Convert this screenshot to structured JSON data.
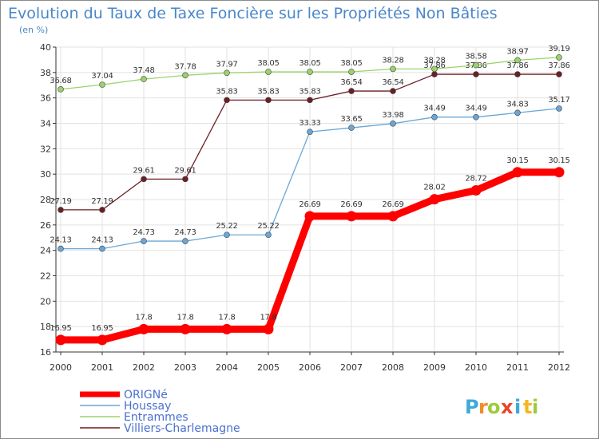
{
  "chart_data": {
    "type": "line",
    "title": "Evolution du Taux de Taxe Foncière sur les Propriétés Non Bâties",
    "subtitle": "(en %)",
    "x": [
      "2000",
      "2001",
      "2002",
      "2003",
      "2004",
      "2005",
      "2006",
      "2007",
      "2008",
      "2009",
      "2010",
      "2011",
      "2012"
    ],
    "ylim": [
      16,
      40
    ],
    "yticks": [
      "16",
      "18",
      "20",
      "22",
      "24",
      "26",
      "28",
      "30",
      "32",
      "34",
      "36",
      "38",
      "40"
    ],
    "grid": true,
    "legend_position": "bottom-left",
    "series": [
      {
        "name": "Villiers-Charlemagne",
        "color": "#6b1f24",
        "values": [
          27.19,
          27.19,
          29.61,
          29.61,
          35.83,
          35.83,
          35.83,
          36.54,
          36.54,
          37.86,
          37.86,
          37.86,
          37.86
        ],
        "labels": [
          "27.19",
          "27.19",
          "29.61",
          "29.61",
          "35.83",
          "35.83",
          "35.83",
          "36.54",
          "36.54",
          "37.86",
          "37.86",
          "37.86",
          "37.86"
        ]
      },
      {
        "name": "Entrammes",
        "color": "#9ad36a",
        "values": [
          36.68,
          37.04,
          37.48,
          37.78,
          37.97,
          38.05,
          38.05,
          38.05,
          38.28,
          38.28,
          38.58,
          38.97,
          39.19
        ],
        "labels": [
          "36.68",
          "37.04",
          "37.48",
          "37.78",
          "37.97",
          "38.05",
          "38.05",
          "38.05",
          "38.28",
          "38.28",
          "38.58",
          "38.97",
          "39.19"
        ]
      },
      {
        "name": "Houssay",
        "color": "#6aa6d6",
        "values": [
          24.13,
          24.13,
          24.73,
          24.73,
          25.22,
          25.22,
          33.33,
          33.65,
          33.98,
          34.49,
          34.49,
          34.83,
          35.17
        ],
        "labels": [
          "24.13",
          "24.13",
          "24.73",
          "24.73",
          "25.22",
          "25.22",
          "33.33",
          "33.65",
          "33.98",
          "34.49",
          "34.49",
          "34.83",
          "35.17"
        ]
      },
      {
        "name": "ORIGNé",
        "color": "#ff0000",
        "values": [
          16.95,
          16.95,
          17.8,
          17.8,
          17.8,
          17.8,
          26.69,
          26.69,
          26.69,
          28.02,
          28.72,
          30.15,
          30.15
        ],
        "labels": [
          "16.95",
          "16.95",
          "17.8",
          "17.8",
          "17.8",
          "17.8",
          "26.69",
          "26.69",
          "26.69",
          "28.02",
          "28.72",
          "30.15",
          "30.15"
        ]
      }
    ],
    "legend": [
      "ORIGNé",
      "Houssay",
      "Entrammes",
      "Villiers-Charlemagne"
    ]
  },
  "brand": {
    "letters": [
      "P",
      "r",
      "o",
      "x",
      "i",
      "t",
      "i"
    ],
    "colors": [
      "#3fa9d8",
      "#f28c28",
      "#9ccc3c",
      "#e8452c",
      "#3fa9d8",
      "#f2b821",
      "#9ccc3c"
    ]
  },
  "colors": {
    "title": "#4a86c8",
    "axis": "#333333",
    "grid": "#e2e2e2",
    "label": "#333333",
    "legend_text": "#4a6fd0"
  }
}
